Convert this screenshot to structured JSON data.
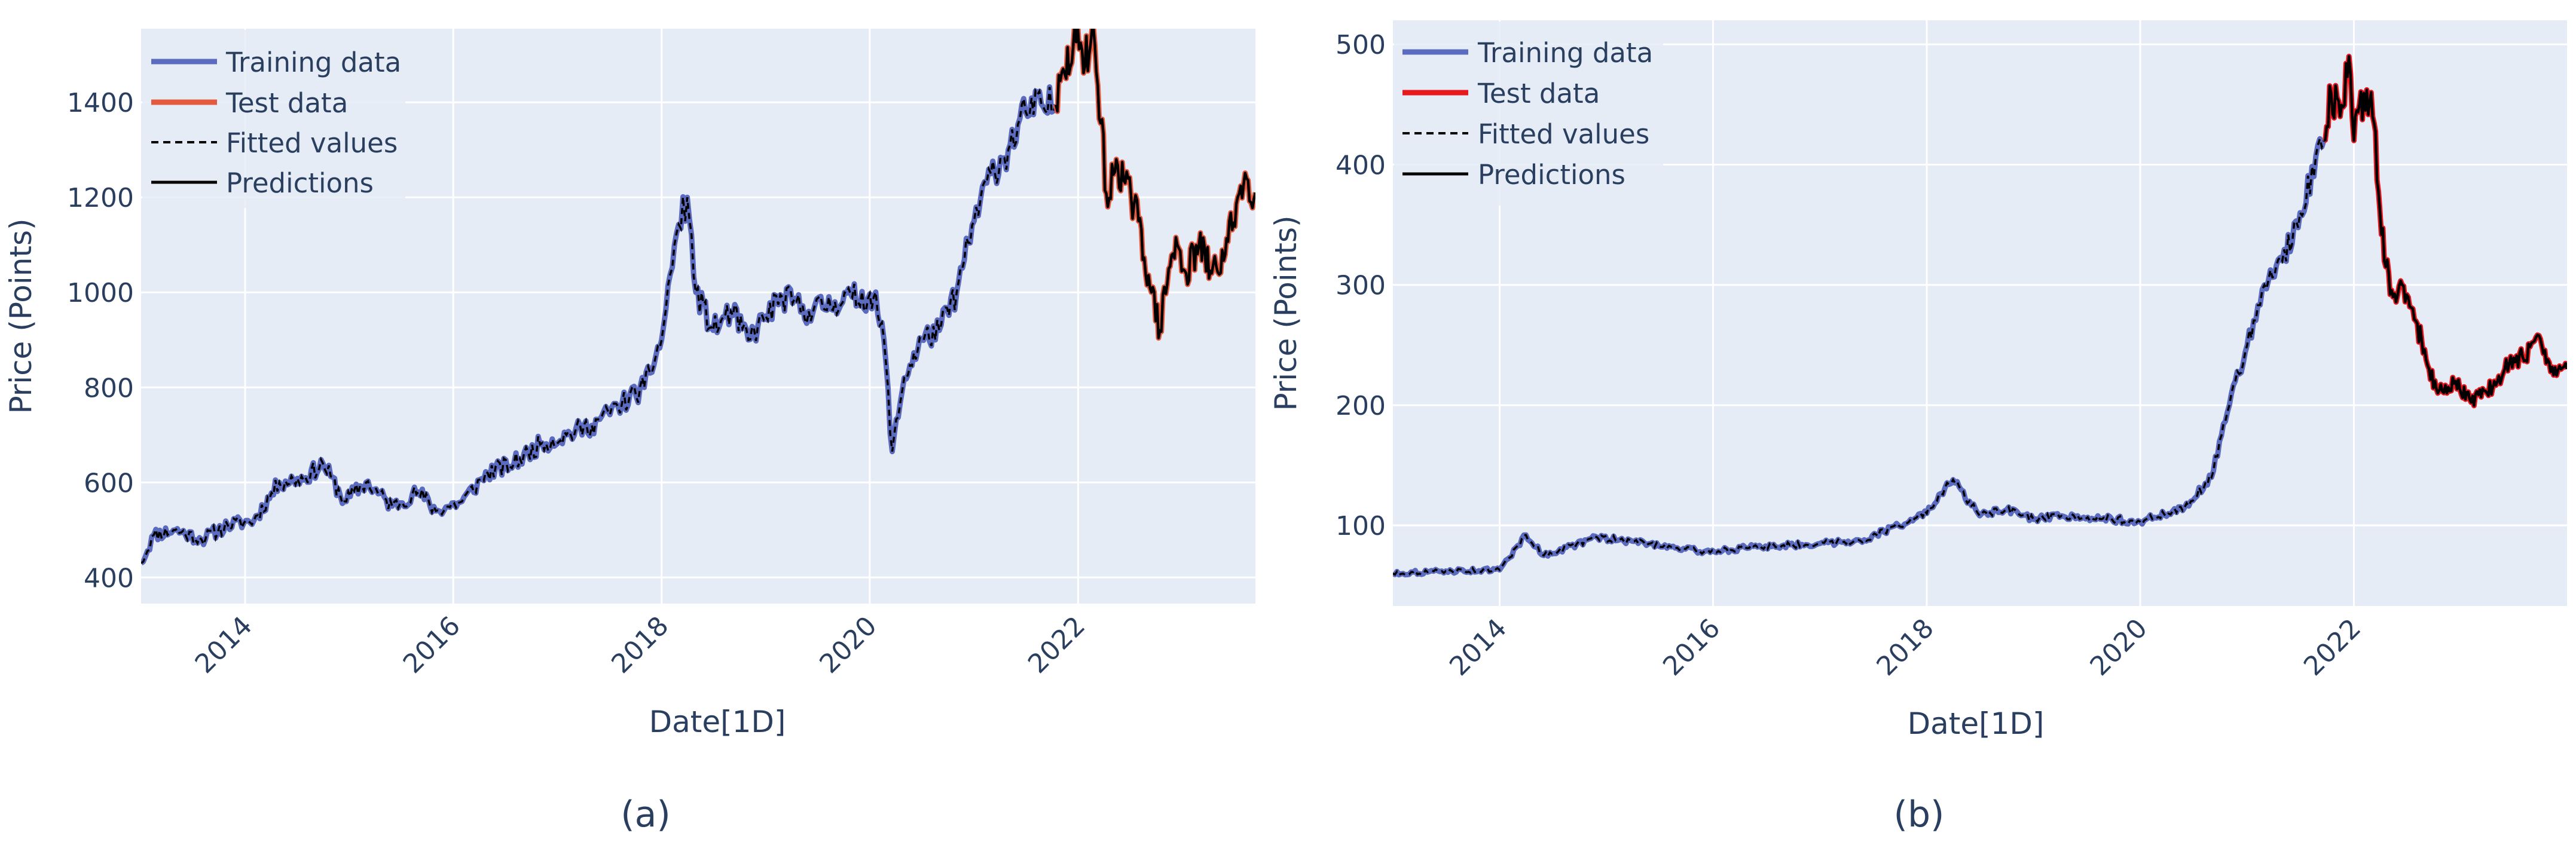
{
  "chart_data": [
    {
      "type": "line",
      "caption": "(a)",
      "xlabel": "Date[1D]",
      "ylabel": "Price (Points)",
      "x_range": [
        "2013-01-01",
        "2023-09-15"
      ],
      "ylim": [
        345,
        1555
      ],
      "x_ticks": [
        "2014",
        "2016",
        "2018",
        "2020",
        "2022"
      ],
      "y_ticks": [
        400,
        600,
        800,
        1000,
        1200,
        1400
      ],
      "grid": true,
      "legend_position": "top-left",
      "colors": {
        "training": "#5b6bbf",
        "test": "#e45a3e",
        "fitted": "#000000",
        "predictions": "#000000"
      },
      "legend": [
        "Training data",
        "Test data",
        "Fitted values",
        "Predictions"
      ],
      "split_date": "2021-10-15",
      "series": [
        {
          "name": "Training data",
          "x": [
            "2013-01-01",
            "2013-02-15",
            "2013-05-01",
            "2013-08-01",
            "2013-11-01",
            "2014-02-01",
            "2014-05-01",
            "2014-08-01",
            "2014-10-01",
            "2014-12-15",
            "2015-03-01",
            "2015-06-01",
            "2015-09-01",
            "2015-11-01",
            "2016-02-01",
            "2016-05-01",
            "2016-08-01",
            "2016-11-01",
            "2017-02-01",
            "2017-05-01",
            "2017-08-01",
            "2017-11-01",
            "2018-01-01",
            "2018-02-15",
            "2018-04-01",
            "2018-05-01",
            "2018-07-01",
            "2018-09-01",
            "2018-11-01",
            "2019-01-01",
            "2019-03-01",
            "2019-06-01",
            "2019-09-01",
            "2019-11-01",
            "2020-01-15",
            "2020-02-20",
            "2020-03-20",
            "2020-05-01",
            "2020-07-01",
            "2020-09-01",
            "2020-11-01",
            "2021-01-01",
            "2021-03-01",
            "2021-05-01",
            "2021-07-01",
            "2021-09-01",
            "2021-10-15"
          ],
          "y": [
            430,
            490,
            500,
            480,
            510,
            520,
            600,
            610,
            640,
            560,
            600,
            550,
            580,
            540,
            560,
            620,
            640,
            680,
            700,
            720,
            760,
            800,
            900,
            1100,
            1200,
            1000,
            920,
            960,
            900,
            950,
            990,
            960,
            980,
            990,
            990,
            900,
            665,
            820,
            900,
            920,
            1000,
            1150,
            1250,
            1300,
            1380,
            1390,
            1395
          ]
        },
        {
          "name": "Test data",
          "x": [
            "2021-10-15",
            "2021-11-15",
            "2021-12-15",
            "2022-01-15",
            "2022-03-01",
            "2022-04-15",
            "2022-05-15",
            "2022-06-15",
            "2022-08-01",
            "2022-09-15",
            "2022-10-15",
            "2022-11-15",
            "2022-12-15",
            "2023-01-15",
            "2023-03-01",
            "2023-04-15",
            "2023-06-01",
            "2023-07-15",
            "2023-08-15",
            "2023-09-15"
          ],
          "y": [
            1395,
            1460,
            1520,
            1510,
            1520,
            1180,
            1280,
            1230,
            1150,
            1000,
            920,
            1050,
            1100,
            1040,
            1100,
            1040,
            1080,
            1200,
            1240,
            1210
          ]
        }
      ]
    },
    {
      "type": "line",
      "caption": "(b)",
      "xlabel": "Date[1D]",
      "ylabel": "Price (Points)",
      "x_range": [
        "2013-01-01",
        "2023-12-31"
      ],
      "ylim": [
        33,
        520
      ],
      "x_ticks": [
        "2014",
        "2016",
        "2018",
        "2020",
        "2022"
      ],
      "y_ticks": [
        100,
        200,
        300,
        400,
        500
      ],
      "grid": true,
      "legend_position": "top-left",
      "colors": {
        "training": "#5b6bbf",
        "test": "#e6191e",
        "fitted": "#000000",
        "predictions": "#000000"
      },
      "legend": [
        "Training data",
        "Test data",
        "Fitted values",
        "Predictions"
      ],
      "split_date": "2021-09-20",
      "series": [
        {
          "name": "Training data",
          "x": [
            "2013-01-01",
            "2013-07-01",
            "2014-01-01",
            "2014-04-01",
            "2014-06-01",
            "2014-12-01",
            "2015-06-01",
            "2015-12-01",
            "2016-06-01",
            "2017-01-01",
            "2017-06-01",
            "2018-01-01",
            "2018-04-01",
            "2018-07-01",
            "2018-10-01",
            "2019-01-01",
            "2019-06-01",
            "2020-01-01",
            "2020-06-01",
            "2020-09-01",
            "2020-11-01",
            "2021-01-01",
            "2021-03-01",
            "2021-05-01",
            "2021-07-01",
            "2021-09-20"
          ],
          "y": [
            60,
            62,
            63,
            92,
            75,
            90,
            85,
            78,
            82,
            85,
            88,
            110,
            138,
            108,
            113,
            105,
            108,
            103,
            115,
            140,
            200,
            250,
            300,
            320,
            360,
            420
          ]
        },
        {
          "name": "Test data",
          "x": [
            "2021-09-20",
            "2021-10-15",
            "2021-11-15",
            "2021-12-15",
            "2022-01-01",
            "2022-01-20",
            "2022-03-01",
            "2022-04-15",
            "2022-05-15",
            "2022-06-15",
            "2022-08-01",
            "2022-09-15",
            "2022-10-15",
            "2022-11-15",
            "2022-12-15",
            "2023-02-01",
            "2023-04-01",
            "2023-06-01",
            "2023-08-01",
            "2023-10-01",
            "2023-11-15",
            "2023-12-31"
          ],
          "y": [
            420,
            460,
            440,
            490,
            420,
            450,
            460,
            320,
            290,
            300,
            270,
            230,
            210,
            210,
            220,
            205,
            210,
            230,
            240,
            255,
            225,
            230
          ]
        }
      ]
    }
  ]
}
